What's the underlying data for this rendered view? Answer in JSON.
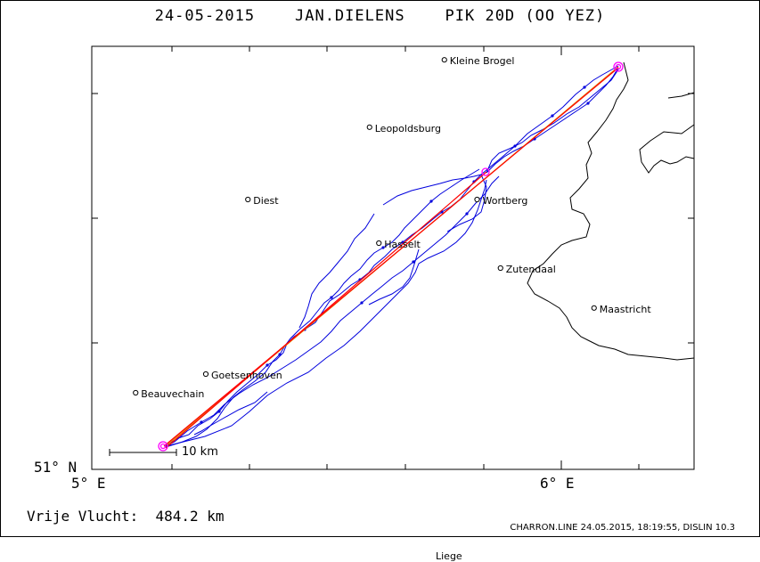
{
  "title": "24-05-2015    JAN.DIELENS    PIK 20D (OO YEZ)",
  "axes": {
    "lat_label": "51° N",
    "lon_labels": [
      "5° E",
      "6° E"
    ]
  },
  "towns": [
    {
      "name": "Kleine Brogel",
      "lon": 5.75,
      "lat": 51.327
    },
    {
      "name": "Leopoldsburg",
      "lon": 5.59,
      "lat": 51.273
    },
    {
      "name": "Diest",
      "lon": 5.33,
      "lat": 51.215
    },
    {
      "name": "Hasselt",
      "lon": 5.61,
      "lat": 51.18
    },
    {
      "name": "Wortberg",
      "lon": 5.82,
      "lat": 51.215
    },
    {
      "name": "Zutendaal",
      "lon": 5.87,
      "lat": 51.16
    },
    {
      "name": "Maastricht",
      "lon": 6.07,
      "lat": 51.128
    },
    {
      "name": "Goetsenhoven",
      "lon": 5.24,
      "lat": 51.075
    },
    {
      "name": "Beauvechain",
      "lon": 5.09,
      "lat": 51.06
    },
    {
      "name": "Liege",
      "lon": 5.72,
      "lat": 50.93
    }
  ],
  "scale_bar_label": "10 km",
  "distance_text": "Vrije Vlucht:  484.2 km",
  "footer_text": "CHARRON.LINE 24.05.2015, 18:19:55, DISLIN 10.3",
  "colors": {
    "track": "#0000dd",
    "task_line_red": "#ff0000",
    "task_line_orange": "#e08a00",
    "turnpoint": "#ff00ff",
    "border": "#000000"
  }
}
